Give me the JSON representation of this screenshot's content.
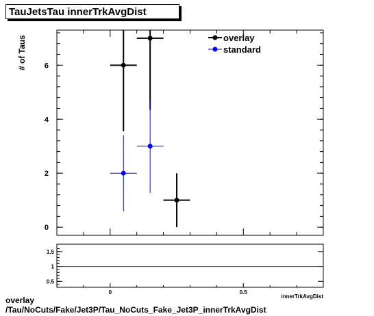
{
  "title": "TauJetsTau innerTrkAvgDist",
  "footer": {
    "line1": "overlay",
    "line2": "/Tau/NoCuts/Fake/Jet3P/Tau_NoCuts_Fake_Jet3P_innerTrkAvgDist"
  },
  "colors": {
    "overlay": "#000000",
    "standard": "#0000ff",
    "ratio_line": "#cc0000"
  },
  "chart_data": [
    {
      "type": "scatter",
      "ylabel": "# of Taus",
      "xlim": [
        -0.2,
        0.8
      ],
      "ylim": [
        -0.3,
        7.3
      ],
      "x_ticks": [
        "0",
        "0.5"
      ],
      "y_ticks": [
        0,
        2,
        4,
        6
      ],
      "legend": {
        "placement": "top-right"
      },
      "series": [
        {
          "name": "overlay",
          "points": [
            {
              "x": 0.05,
              "xerr": 0.05,
              "y": 6,
              "ylo": 3.55,
              "yhi": 8.45
            },
            {
              "x": 0.15,
              "xerr": 0.05,
              "y": 7,
              "ylo": 4.35,
              "yhi": 9.65
            },
            {
              "x": 0.25,
              "xerr": 0.05,
              "y": 1,
              "ylo": 0,
              "yhi": 2.0
            }
          ]
        },
        {
          "name": "standard",
          "points": [
            {
              "x": 0.05,
              "xerr": 0.05,
              "y": 2,
              "ylo": 0.59,
              "yhi": 3.41
            },
            {
              "x": 0.15,
              "xerr": 0.05,
              "y": 3,
              "ylo": 1.27,
              "yhi": 4.73
            }
          ]
        }
      ]
    },
    {
      "type": "line",
      "xlabel": "innerTrkAvgDist",
      "xlim": [
        -0.2,
        0.8
      ],
      "ylim": [
        0.3,
        1.75
      ],
      "x_ticks": [
        "0",
        "0.5"
      ],
      "y_ticks": [
        "0.5",
        "1",
        "1.5"
      ],
      "reference_line": 1
    }
  ]
}
